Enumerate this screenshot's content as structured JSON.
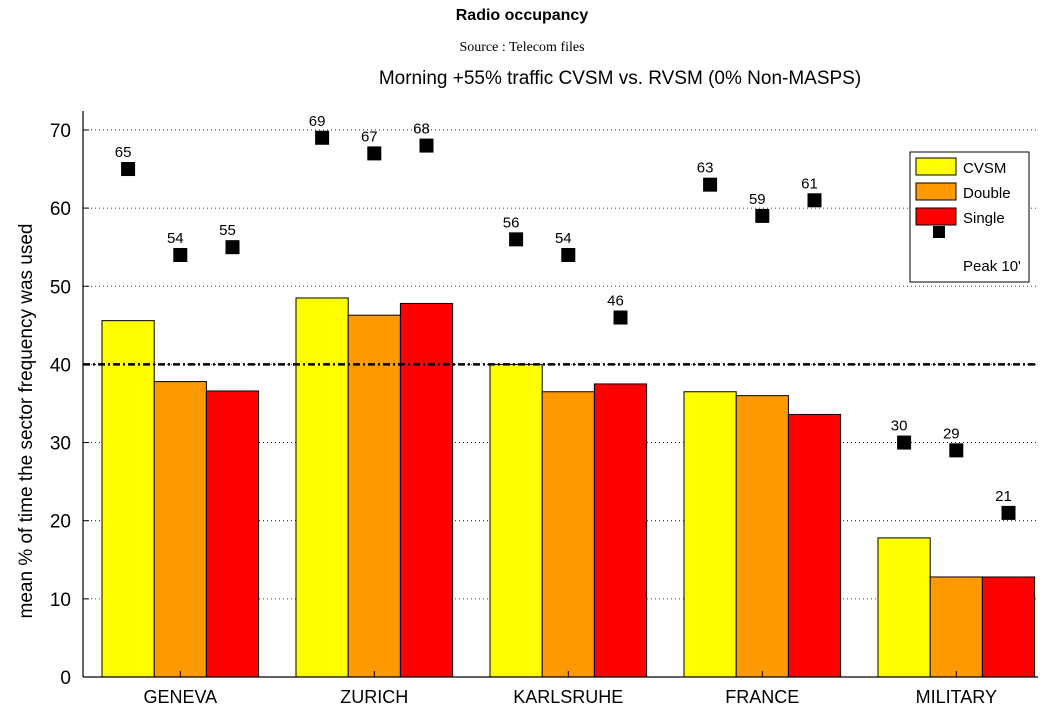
{
  "chart_data": {
    "type": "bar",
    "title": "Radio occupancy",
    "source": "Source : Telecom files",
    "subtitle": "Morning +55% traffic CVSM vs. RVSM (0% Non-MASPS)",
    "ylabel": "mean % of time the sector frequency was used",
    "xlabel": "",
    "ylim": [
      0,
      72
    ],
    "yticks": [
      0,
      10,
      20,
      30,
      40,
      50,
      60,
      70
    ],
    "categories": [
      "GENEVA",
      "ZURICH",
      "KARLSRUHE",
      "FRANCE",
      "MILITARY"
    ],
    "series": [
      {
        "name": "CVSM",
        "color": "#ffff00",
        "values": [
          45.6,
          48.5,
          40.0,
          36.5,
          17.8
        ]
      },
      {
        "name": "Double",
        "color": "#ff9900",
        "values": [
          37.8,
          46.3,
          36.5,
          36.0,
          12.8
        ]
      },
      {
        "name": "Single",
        "color": "#ff0000",
        "values": [
          36.6,
          47.8,
          37.5,
          33.6,
          12.8
        ]
      }
    ],
    "peak": {
      "name": "Peak 10'",
      "values": [
        [
          65,
          54,
          55
        ],
        [
          69,
          67,
          68
        ],
        [
          56,
          54,
          46
        ],
        [
          63,
          59,
          61
        ],
        [
          30,
          29,
          21
        ]
      ]
    },
    "reference_line": 40,
    "grid": "horizontal dotted",
    "legend_position": "top-right"
  }
}
